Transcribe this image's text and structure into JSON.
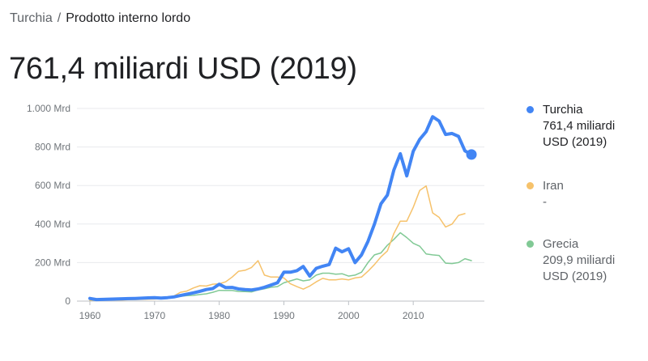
{
  "breadcrumb": {
    "parent": "Turchia",
    "separator": "/",
    "current": "Prodotto interno lordo"
  },
  "headline": "761,4 miliardi USD (2019)",
  "legend": [
    {
      "name": "Turchia",
      "value": "761,4 miliardi USD (2019)",
      "color": "#4285f4"
    },
    {
      "name": "Iran",
      "value": "-",
      "color": "#f6c26b"
    },
    {
      "name": "Grecia",
      "value": "209,9 miliardi USD (2019)",
      "color": "#81c995"
    }
  ],
  "chart_data": {
    "type": "line",
    "x_label": "",
    "y_label": "",
    "xlim": [
      1958,
      2021
    ],
    "ylim": [
      0,
      1000
    ],
    "grid": true,
    "x_ticks": [
      1960,
      1970,
      1980,
      1990,
      2000,
      2010
    ],
    "x_tick_labels": [
      "1960",
      "1970",
      "1980",
      "1990",
      "2000",
      "2010"
    ],
    "y_ticks": [
      0,
      200,
      400,
      600,
      800,
      1000
    ],
    "y_tick_labels": [
      "0",
      "200 Mrd",
      "400 Mrd",
      "600 Mrd",
      "800 Mrd",
      "1.000 Mrd"
    ],
    "series": [
      {
        "name": "Turchia",
        "color": "#4285f4",
        "width": 4,
        "endpoint_marker": true,
        "x": [
          1960,
          1961,
          1962,
          1963,
          1964,
          1965,
          1966,
          1967,
          1968,
          1969,
          1970,
          1971,
          1972,
          1973,
          1974,
          1975,
          1976,
          1977,
          1978,
          1979,
          1980,
          1981,
          1982,
          1983,
          1984,
          1985,
          1986,
          1987,
          1988,
          1989,
          1990,
          1991,
          1992,
          1993,
          1994,
          1995,
          1996,
          1997,
          1998,
          1999,
          2000,
          2001,
          2002,
          2003,
          2004,
          2005,
          2006,
          2007,
          2008,
          2009,
          2010,
          2011,
          2012,
          2013,
          2014,
          2015,
          2016,
          2017,
          2018,
          2019
        ],
        "y": [
          14,
          8,
          9,
          10,
          11,
          12,
          13,
          14,
          15,
          17,
          18,
          16,
          18,
          22,
          29,
          36,
          43,
          51,
          60,
          65,
          88,
          70,
          71,
          63,
          60,
          58,
          63,
          72,
          83,
          95,
          150,
          150,
          158,
          180,
          130,
          170,
          181,
          190,
          275,
          256,
          272,
          200,
          240,
          310,
          400,
          505,
          550,
          680,
          765,
          650,
          778,
          840,
          880,
          957,
          935,
          865,
          870,
          855,
          780,
          761
        ]
      },
      {
        "name": "Iran",
        "color": "#f6c26b",
        "width": 1.5,
        "endpoint_marker": false,
        "x": [
          1960,
          1961,
          1962,
          1963,
          1964,
          1965,
          1966,
          1967,
          1968,
          1969,
          1970,
          1971,
          1972,
          1973,
          1974,
          1975,
          1976,
          1977,
          1978,
          1979,
          1980,
          1981,
          1982,
          1983,
          1984,
          1985,
          1986,
          1987,
          1988,
          1989,
          1990,
          1991,
          1992,
          1993,
          1994,
          1995,
          1996,
          1997,
          1998,
          1999,
          2000,
          2001,
          2002,
          2003,
          2004,
          2005,
          2006,
          2007,
          2008,
          2009,
          2010,
          2011,
          2012,
          2013,
          2014,
          2015,
          2016,
          2017,
          2018
        ],
        "y": [
          4,
          5,
          5,
          5,
          6,
          6,
          7,
          8,
          9,
          10,
          11,
          13,
          16,
          27,
          46,
          52,
          68,
          80,
          78,
          88,
          90,
          100,
          125,
          155,
          160,
          175,
          210,
          135,
          125,
          125,
          120,
          90,
          75,
          62,
          78,
          100,
          118,
          110,
          110,
          115,
          110,
          120,
          125,
          155,
          190,
          230,
          260,
          350,
          415,
          415,
          487,
          575,
          598,
          458,
          435,
          385,
          400,
          445,
          454
        ]
      },
      {
        "name": "Grecia",
        "color": "#81c995",
        "width": 1.5,
        "endpoint_marker": false,
        "x": [
          1960,
          1961,
          1962,
          1963,
          1964,
          1965,
          1966,
          1967,
          1968,
          1969,
          1970,
          1971,
          1972,
          1973,
          1974,
          1975,
          1976,
          1977,
          1978,
          1979,
          1980,
          1981,
          1982,
          1983,
          1984,
          1985,
          1986,
          1987,
          1988,
          1989,
          1990,
          1991,
          1992,
          1993,
          1994,
          1995,
          1996,
          1997,
          1998,
          1999,
          2000,
          2001,
          2002,
          2003,
          2004,
          2005,
          2006,
          2007,
          2008,
          2009,
          2010,
          2011,
          2012,
          2013,
          2014,
          2015,
          2016,
          2017,
          2018,
          2019
        ],
        "y": [
          4,
          5,
          5,
          6,
          7,
          8,
          9,
          10,
          11,
          12,
          13,
          14,
          17,
          22,
          25,
          28,
          30,
          34,
          38,
          46,
          56,
          55,
          55,
          50,
          49,
          48,
          58,
          64,
          72,
          75,
          95,
          105,
          115,
          105,
          110,
          135,
          145,
          145,
          140,
          142,
          130,
          135,
          150,
          200,
          240,
          250,
          290,
          320,
          355,
          330,
          300,
          285,
          245,
          240,
          237,
          197,
          195,
          200,
          220,
          210
        ]
      }
    ]
  }
}
